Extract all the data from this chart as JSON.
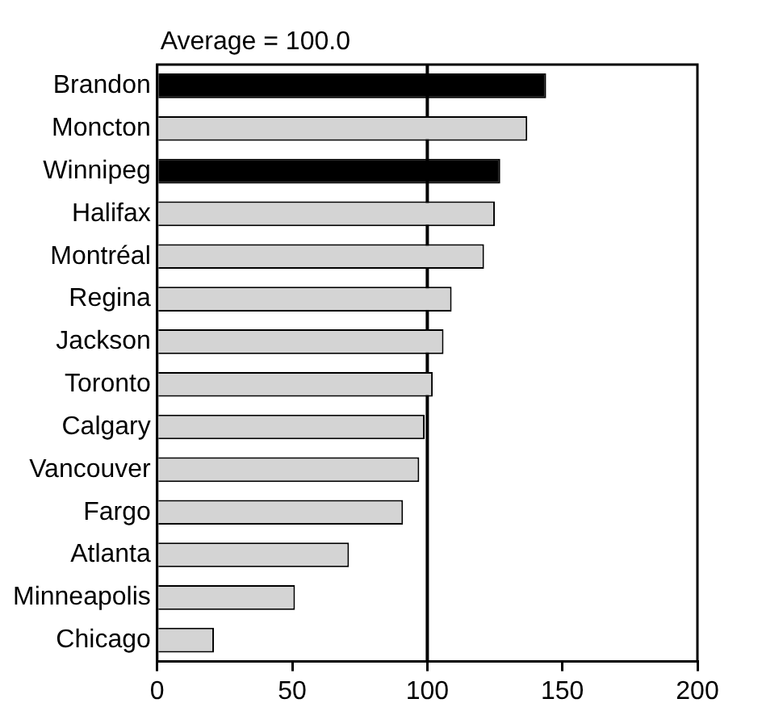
{
  "chart_data": {
    "type": "bar",
    "orientation": "horizontal",
    "categories": [
      "Brandon",
      "Moncton",
      "Winnipeg",
      "Halifax",
      "Montréal",
      "Regina",
      "Jackson",
      "Toronto",
      "Calgary",
      "Vancouver",
      "Fargo",
      "Atlanta",
      "Minneapolis",
      "Chicago"
    ],
    "values": [
      144,
      137,
      127,
      125,
      121,
      109,
      106,
      102,
      99,
      97,
      91,
      71,
      51,
      21
    ],
    "colors": [
      "#000000",
      "#d4d4d4",
      "#000000",
      "#d4d4d4",
      "#d4d4d4",
      "#d4d4d4",
      "#d4d4d4",
      "#d4d4d4",
      "#d4d4d4",
      "#d4d4d4",
      "#d4d4d4",
      "#d4d4d4",
      "#d4d4d4",
      "#d4d4d4"
    ],
    "xlim": [
      0,
      200
    ],
    "xticks": [
      0,
      50,
      100,
      150,
      200
    ],
    "grid": false,
    "legend": false,
    "ref_lines": [
      {
        "axis": "x",
        "value": 100,
        "label": "Average = 100.0",
        "color": "#000000"
      }
    ]
  }
}
